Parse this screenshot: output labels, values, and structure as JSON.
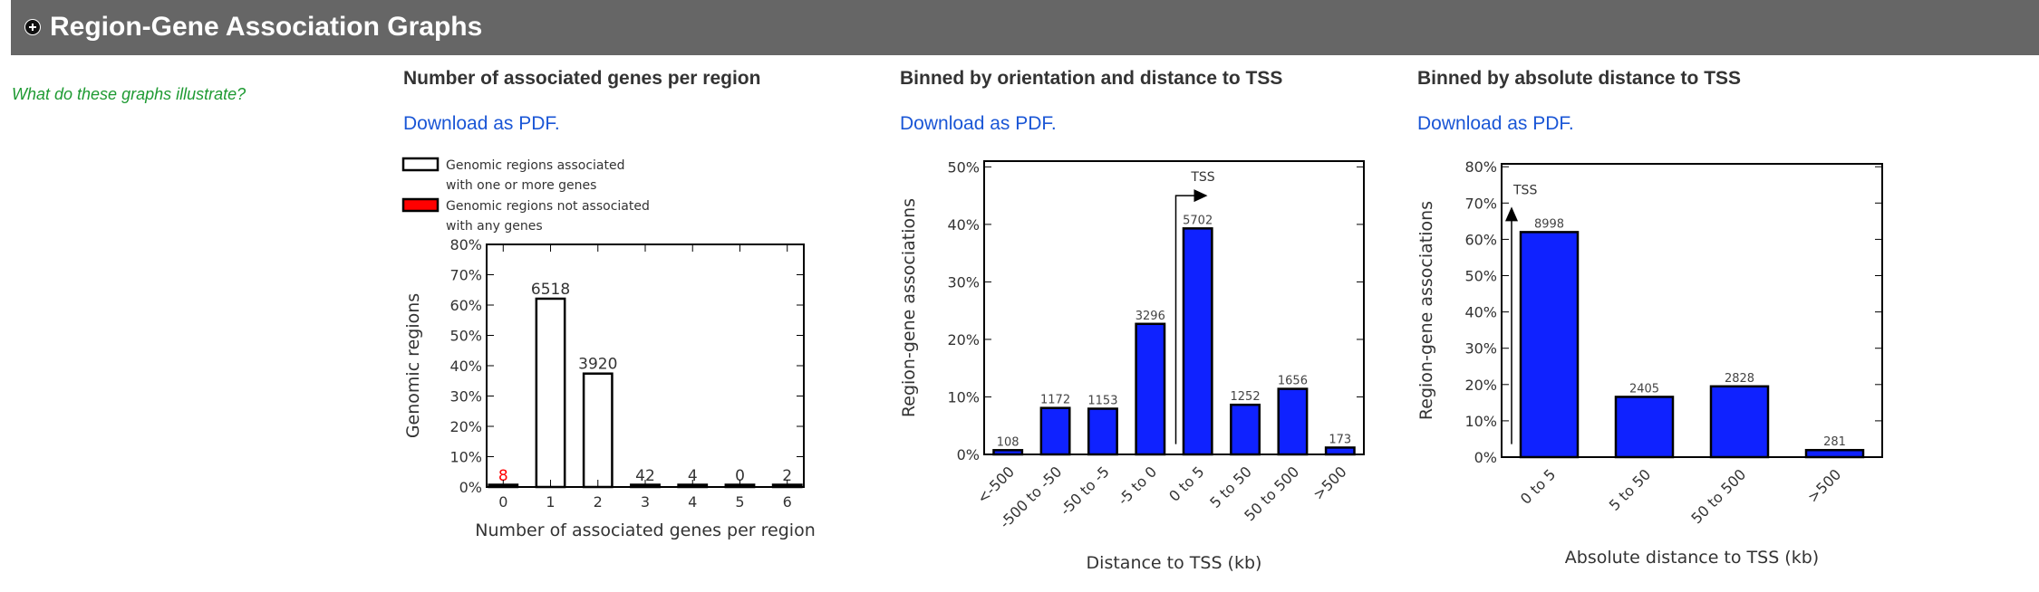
{
  "header": {
    "title": "Region-Gene Association Graphs",
    "icon": "plus-circle-icon"
  },
  "help_link": "What do these graphs illustrate?",
  "columns": [
    {
      "title": "Number of associated genes per region",
      "download": "Download as PDF."
    },
    {
      "title": "Binned by orientation and distance to TSS",
      "download": "Download as PDF."
    },
    {
      "title": "Binned by absolute distance to TSS",
      "download": "Download as PDF."
    }
  ],
  "colors": {
    "header_bg": "#666666",
    "help_link": "#1e9a32",
    "link": "#1a56d6",
    "bar_blue": "#0f22ff",
    "bar_red": "#ff0000"
  },
  "chart_data": [
    {
      "type": "bar",
      "xlabel": "Number of associated genes per region",
      "ylabel": "Genomic regions",
      "ylim": [
        0,
        80
      ],
      "yticks": [
        "0%",
        "10%",
        "20%",
        "30%",
        "40%",
        "50%",
        "60%",
        "70%",
        "80%"
      ],
      "categories": [
        "0",
        "1",
        "2",
        "3",
        "4",
        "5",
        "6"
      ],
      "values": [
        0.08,
        62.1,
        37.4,
        0.4,
        0.04,
        0,
        0.02
      ],
      "labels": [
        "8",
        "6518",
        "3920",
        "42",
        "4",
        "0",
        "2"
      ],
      "bar_colors": [
        "#ff0000",
        "#ffffff",
        "#ffffff",
        "#ffffff",
        "#ffffff",
        "#ffffff",
        "#ffffff"
      ],
      "label_colors": [
        "#ff0000",
        "#333333",
        "#333333",
        "#333333",
        "#333333",
        "#333333",
        "#333333"
      ],
      "legend": [
        {
          "line1": "Genomic regions associated",
          "line2": "with one or more genes",
          "color": "#ffffff"
        },
        {
          "line1": "Genomic regions not associated",
          "line2": "with any genes",
          "color": "#ff0000"
        }
      ],
      "legend_position": "top"
    },
    {
      "type": "bar",
      "xlabel": "Distance to TSS (kb)",
      "ylabel": "Region-gene associations",
      "ylim": [
        0,
        51
      ],
      "yticks": [
        "0%",
        "10%",
        "20%",
        "30%",
        "40%",
        "50%"
      ],
      "categories": [
        "<-500",
        "-500 to -50",
        "-50 to -5",
        "-5 to 0",
        "0 to 5",
        "5 to 50",
        "50 to 500",
        ">500"
      ],
      "values": [
        0.74,
        8.08,
        7.95,
        22.7,
        39.3,
        8.63,
        11.4,
        1.19
      ],
      "labels": [
        "108",
        "1172",
        "1153",
        "3296",
        "5702",
        "1252",
        "1656",
        "173"
      ],
      "annotation": "TSS"
    },
    {
      "type": "bar",
      "xlabel": "Absolute distance to TSS (kb)",
      "ylabel": "Region-gene associations",
      "ylim": [
        0,
        80.8
      ],
      "yticks": [
        "0%",
        "10%",
        "20%",
        "30%",
        "40%",
        "50%",
        "60%",
        "70%",
        "80%"
      ],
      "categories": [
        "0 to 5",
        "5 to 50",
        "50 to 500",
        ">500"
      ],
      "values": [
        62.0,
        16.6,
        19.5,
        1.94
      ],
      "labels": [
        "8998",
        "2405",
        "2828",
        "281"
      ],
      "annotation": "TSS"
    }
  ]
}
